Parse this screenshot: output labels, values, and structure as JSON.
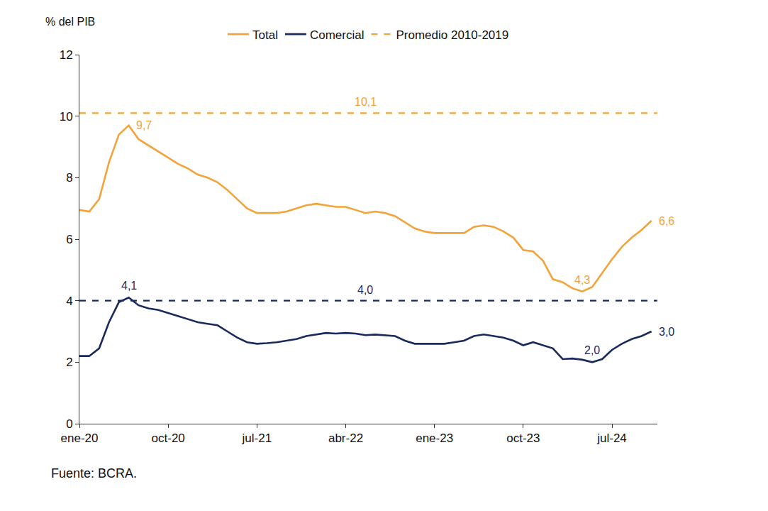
{
  "chart_data": {
    "type": "line",
    "ylabel": "% del PIB",
    "caption": "Fuente: BCRA.",
    "categories": [
      "ene-20",
      null,
      null,
      null,
      null,
      null,
      null,
      null,
      null,
      "oct-20",
      null,
      null,
      null,
      null,
      null,
      null,
      null,
      null,
      "jul-21",
      null,
      null,
      null,
      null,
      null,
      null,
      null,
      null,
      "abr-22",
      null,
      null,
      null,
      null,
      null,
      null,
      null,
      null,
      "ene-23",
      null,
      null,
      null,
      null,
      null,
      null,
      null,
      null,
      "oct-23",
      null,
      null,
      null,
      null,
      null,
      null,
      null,
      null,
      "jul-24",
      null,
      null,
      null,
      null
    ],
    "series": [
      {
        "name": "Total",
        "color": "#F2A33A",
        "line_style": "solid",
        "values": [
          6.95,
          6.9,
          7.3,
          8.5,
          9.4,
          9.7,
          9.25,
          9.05,
          8.85,
          8.65,
          8.45,
          8.3,
          8.1,
          8.0,
          7.85,
          7.6,
          7.3,
          7.0,
          6.85,
          6.85,
          6.85,
          6.9,
          7.0,
          7.1,
          7.15,
          7.1,
          7.05,
          7.05,
          6.95,
          6.85,
          6.9,
          6.85,
          6.75,
          6.55,
          6.35,
          6.25,
          6.2,
          6.2,
          6.2,
          6.2,
          6.4,
          6.45,
          6.4,
          6.25,
          6.05,
          5.65,
          5.6,
          5.3,
          4.7,
          4.6,
          4.4,
          4.3,
          4.45,
          4.9,
          5.35,
          5.75,
          6.05,
          6.3,
          6.6
        ],
        "value_labels": [
          null,
          null,
          null,
          null,
          null,
          "9,7",
          null,
          null,
          null,
          null,
          null,
          null,
          null,
          null,
          null,
          null,
          null,
          null,
          null,
          null,
          null,
          null,
          null,
          null,
          null,
          null,
          null,
          null,
          null,
          null,
          null,
          null,
          null,
          null,
          null,
          null,
          null,
          null,
          null,
          null,
          null,
          null,
          null,
          null,
          null,
          null,
          null,
          null,
          null,
          null,
          null,
          "4,3",
          null,
          null,
          null,
          null,
          null,
          null,
          "6,6"
        ]
      },
      {
        "name": "Comercial",
        "color": "#1B2A5C",
        "line_style": "solid",
        "values": [
          2.2,
          2.2,
          2.45,
          3.3,
          3.95,
          4.1,
          3.85,
          3.75,
          3.7,
          3.6,
          3.5,
          3.4,
          3.3,
          3.25,
          3.2,
          3.0,
          2.8,
          2.65,
          2.6,
          2.62,
          2.65,
          2.7,
          2.75,
          2.85,
          2.9,
          2.95,
          2.93,
          2.95,
          2.93,
          2.88,
          2.9,
          2.88,
          2.85,
          2.7,
          2.6,
          2.6,
          2.6,
          2.6,
          2.65,
          2.7,
          2.85,
          2.9,
          2.85,
          2.8,
          2.7,
          2.55,
          2.65,
          2.55,
          2.45,
          2.1,
          2.12,
          2.08,
          2.0,
          2.1,
          2.4,
          2.6,
          2.75,
          2.85,
          3.0
        ],
        "value_labels": [
          null,
          null,
          null,
          null,
          null,
          "4,1",
          null,
          null,
          null,
          null,
          null,
          null,
          null,
          null,
          null,
          null,
          null,
          null,
          null,
          null,
          null,
          null,
          null,
          null,
          null,
          null,
          null,
          null,
          null,
          null,
          null,
          null,
          null,
          null,
          null,
          null,
          null,
          null,
          null,
          null,
          null,
          null,
          null,
          null,
          null,
          null,
          null,
          null,
          null,
          null,
          null,
          null,
          "2,0",
          null,
          null,
          null,
          null,
          null,
          "3,0"
        ]
      }
    ],
    "reference_lines": [
      {
        "name": "Promedio 2010-2019",
        "value": 10.1,
        "label": "10,1",
        "color": "#F2A33A",
        "line_style": "dash"
      },
      {
        "value": 4.0,
        "label": "4,0",
        "color": "#1B2A5C",
        "line_style": "dash"
      }
    ],
    "ylim": [
      0,
      12
    ],
    "yticks": [
      0,
      2,
      4,
      6,
      8,
      10,
      12
    ],
    "grid": false,
    "legend": "top"
  }
}
